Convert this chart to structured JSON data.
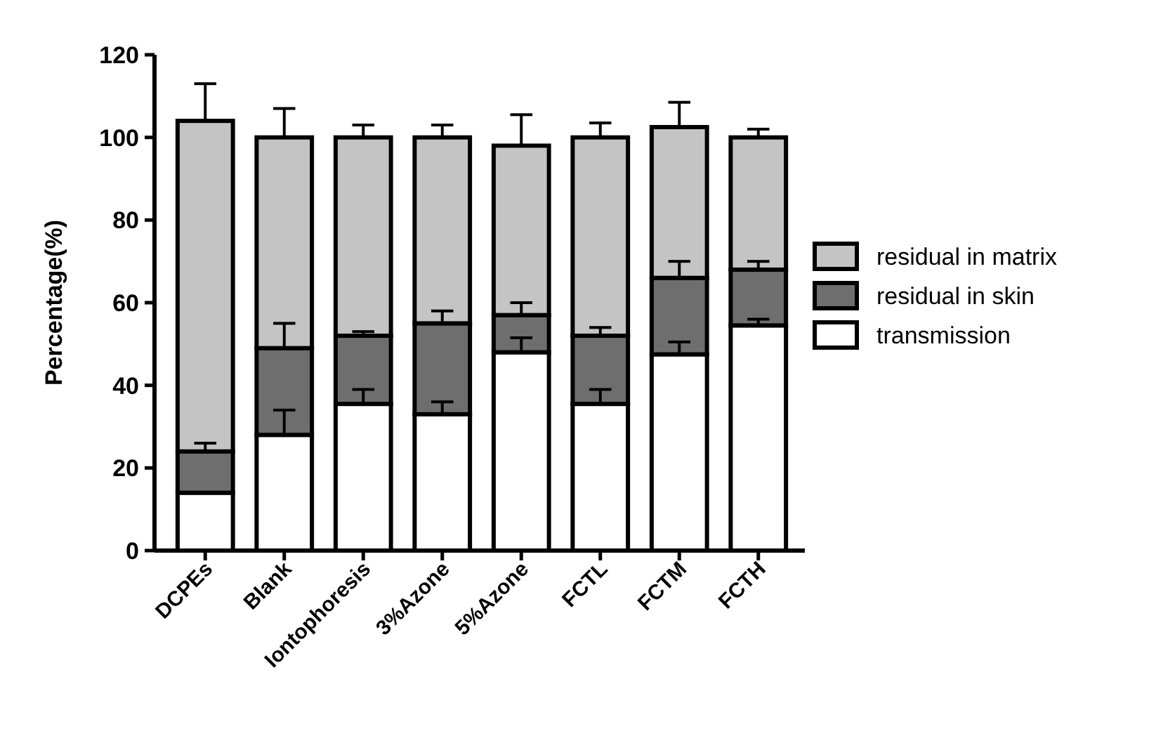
{
  "chart_data": {
    "type": "bar",
    "stacked": true,
    "ylabel": "Percentage(%)",
    "categories": [
      "DCPEs",
      "Blank",
      "Iontophoresis",
      "3%Azone",
      "5%Azone",
      "FCTL",
      "FCTM",
      "FCTH"
    ],
    "series": [
      {
        "name": "transmission",
        "color": "#ffffff",
        "values": [
          14,
          28,
          35.5,
          33,
          48,
          35.5,
          47.5,
          54.5
        ],
        "errors": [
          null,
          6,
          3.5,
          3,
          3.5,
          3.5,
          3,
          1.5
        ]
      },
      {
        "name": "residual in skin",
        "color": "#6e6e6e",
        "values": [
          10,
          21,
          16.5,
          22,
          9,
          16.5,
          18.5,
          13.5
        ],
        "errors": [
          2,
          6,
          1,
          3,
          3,
          2,
          4,
          2
        ]
      },
      {
        "name": "residual in matrix",
        "color": "#c4c4c4",
        "values": [
          80,
          51,
          48,
          45,
          41,
          48,
          36.5,
          32
        ],
        "errors": [
          9,
          7,
          3,
          3,
          7.5,
          3.5,
          6,
          2
        ]
      }
    ],
    "ylim": [
      0,
      120
    ],
    "yticks": [
      0,
      20,
      40,
      60,
      80,
      100,
      120
    ],
    "legend": "right",
    "grid": false
  }
}
